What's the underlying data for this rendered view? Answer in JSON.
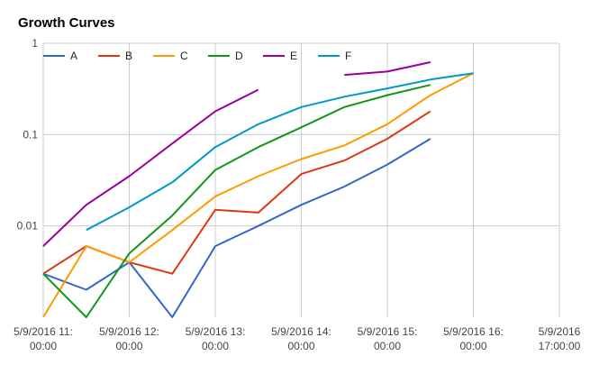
{
  "chart_data": {
    "type": "line",
    "title": "Growth Curves",
    "xlabel": "",
    "ylabel": "",
    "y_scale": "log",
    "ylim": [
      0.001,
      1
    ],
    "y_ticks": [
      {
        "value": 1,
        "label": "1"
      },
      {
        "value": 0.1,
        "label": "0.1"
      },
      {
        "value": 0.01,
        "label": "0.01"
      }
    ],
    "x_range": [
      "2016-05-09 11:00",
      "2016-05-09 17:00"
    ],
    "x_ticks": [
      {
        "x": "2016-05-09 11:00",
        "line1": "5/9/2016 11:",
        "line2": "00:00"
      },
      {
        "x": "2016-05-09 12:00",
        "line1": "5/9/2016 12:",
        "line2": "00:00"
      },
      {
        "x": "2016-05-09 13:00",
        "line1": "5/9/2016 13:",
        "line2": "00:00"
      },
      {
        "x": "2016-05-09 14:00",
        "line1": "5/9/2016 14:",
        "line2": "00:00"
      },
      {
        "x": "2016-05-09 15:00",
        "line1": "5/9/2016 15:",
        "line2": "00:00"
      },
      {
        "x": "2016-05-09 16:00",
        "line1": "5/9/2016 16:",
        "line2": "00:00"
      },
      {
        "x": "2016-05-09 17:00",
        "line1": "5/9/2016",
        "line2": "17:00:00"
      }
    ],
    "grid": true,
    "legend_position": "top-left",
    "series": [
      {
        "name": "A",
        "color": "#3366cc",
        "points": [
          [
            "2016-05-09 11:00",
            0.003
          ],
          [
            "2016-05-09 11:30",
            0.002
          ],
          [
            "2016-05-09 12:00",
            0.004
          ],
          [
            "2016-05-09 12:30",
            0.001
          ],
          [
            "2016-05-09 13:00",
            0.006
          ],
          [
            "2016-05-09 13:30",
            0.01
          ],
          [
            "2016-05-09 14:00",
            0.017
          ],
          [
            "2016-05-09 14:30",
            0.027
          ],
          [
            "2016-05-09 15:00",
            0.047
          ],
          [
            "2016-05-09 15:30",
            0.09
          ]
        ]
      },
      {
        "name": "B",
        "color": "#dc3912",
        "points": [
          [
            "2016-05-09 11:00",
            0.003
          ],
          [
            "2016-05-09 11:30",
            0.006
          ],
          [
            "2016-05-09 12:00",
            0.004
          ],
          [
            "2016-05-09 12:30",
            0.003
          ],
          [
            "2016-05-09 13:00",
            0.015
          ],
          [
            "2016-05-09 13:30",
            0.014
          ],
          [
            "2016-05-09 14:00",
            0.037
          ],
          [
            "2016-05-09 14:30",
            0.052
          ],
          [
            "2016-05-09 15:00",
            0.09
          ],
          [
            "2016-05-09 15:30",
            0.18
          ]
        ]
      },
      {
        "name": "C",
        "color": "#ff9900",
        "points": [
          [
            "2016-05-09 11:00",
            0.001
          ],
          [
            "2016-05-09 11:30",
            0.006
          ],
          [
            "2016-05-09 12:00",
            0.004
          ],
          [
            "2016-05-09 12:30",
            0.009
          ],
          [
            "2016-05-09 13:00",
            0.021
          ],
          [
            "2016-05-09 13:30",
            0.035
          ],
          [
            "2016-05-09 14:00",
            0.054
          ],
          [
            "2016-05-09 14:30",
            0.076
          ],
          [
            "2016-05-09 15:00",
            0.13
          ],
          [
            "2016-05-09 15:30",
            0.27
          ],
          [
            "2016-05-09 16:00",
            0.47
          ]
        ]
      },
      {
        "name": "D",
        "color": "#109618",
        "points": [
          [
            "2016-05-09 11:00",
            0.003
          ],
          [
            "2016-05-09 11:30",
            0.001
          ],
          [
            "2016-05-09 12:00",
            0.005
          ],
          [
            "2016-05-09 12:30",
            0.013
          ],
          [
            "2016-05-09 13:00",
            0.041
          ],
          [
            "2016-05-09 13:30",
            0.073
          ],
          [
            "2016-05-09 14:00",
            0.12
          ],
          [
            "2016-05-09 14:30",
            0.2
          ],
          [
            "2016-05-09 15:00",
            0.27
          ],
          [
            "2016-05-09 15:30",
            0.35
          ]
        ]
      },
      {
        "name": "E",
        "color": "#990099",
        "points": [
          [
            "2016-05-09 11:00",
            0.006
          ],
          [
            "2016-05-09 11:30",
            0.017
          ],
          [
            "2016-05-09 12:00",
            0.035
          ],
          [
            "2016-05-09 12:30",
            0.08
          ],
          [
            "2016-05-09 13:00",
            0.18
          ],
          [
            "2016-05-09 13:30",
            0.31
          ],
          null,
          [
            "2016-05-09 14:30",
            0.45
          ],
          [
            "2016-05-09 15:00",
            0.49
          ],
          [
            "2016-05-09 15:30",
            0.62
          ]
        ]
      },
      {
        "name": "F",
        "color": "#0099c6",
        "points": [
          [
            "2016-05-09 11:30",
            0.009
          ],
          [
            "2016-05-09 12:00",
            0.016
          ],
          [
            "2016-05-09 12:30",
            0.03
          ],
          [
            "2016-05-09 13:00",
            0.073
          ],
          [
            "2016-05-09 13:30",
            0.13
          ],
          [
            "2016-05-09 14:00",
            0.2
          ],
          [
            "2016-05-09 14:30",
            0.26
          ],
          [
            "2016-05-09 15:00",
            0.32
          ],
          [
            "2016-05-09 15:30",
            0.4
          ],
          [
            "2016-05-09 16:00",
            0.47
          ]
        ]
      }
    ]
  }
}
